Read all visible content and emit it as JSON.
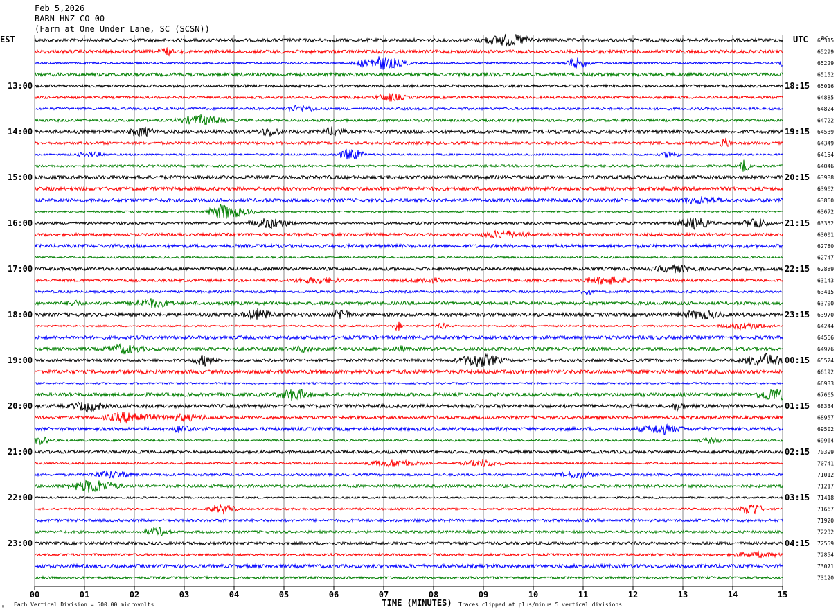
{
  "header": {
    "date": "Feb 5,2026",
    "station": "BARN HNZ CO 00",
    "location": "(Farm at One Under Lane, SC (SCSN))"
  },
  "axis": {
    "left_label": "EST",
    "right_label": "UTC",
    "dc_label": "DC",
    "xlabel": "TIME (MINUTES)",
    "x_ticks": [
      "00",
      "01",
      "02",
      "03",
      "04",
      "05",
      "06",
      "07",
      "08",
      "09",
      "10",
      "11",
      "12",
      "13",
      "14",
      "15"
    ],
    "footnote_left": "Each Vertical Division = 500.00 microvolts",
    "footnote_right": "Traces clipped at plus/minus 5 vertical divisions",
    "corner_mark": "ᴹ"
  },
  "chart_data": {
    "type": "line",
    "title": "",
    "xlabel": "TIME (MINUTES)",
    "xlim": [
      0,
      15
    ],
    "trace_colors": [
      "#000000",
      "#ff0000",
      "#0000ff",
      "#007f00"
    ],
    "est_hour_labels": [
      "13:00",
      "14:00",
      "15:00",
      "16:00",
      "17:00",
      "18:00",
      "19:00",
      "20:00",
      "21:00",
      "22:00",
      "23:00"
    ],
    "utc_hour_labels": [
      "18:15",
      "19:15",
      "20:15",
      "21:15",
      "22:15",
      "23:15",
      "00:15",
      "01:15",
      "02:15",
      "03:15",
      "04:15"
    ],
    "dc_offsets": [
      "65315",
      "65299",
      "65229",
      "65152",
      "65016",
      "64885",
      "64824",
      "64722",
      "64539",
      "64349",
      "64154",
      "64046",
      "63988",
      "63962",
      "63860",
      "63672",
      "63352",
      "63001",
      "62780",
      "62747",
      "62889",
      "63143",
      "63415",
      "63700",
      "63970",
      "64244",
      "64566",
      "64976",
      "65524",
      "66192",
      "66933",
      "67665",
      "68334",
      "68957",
      "69502",
      "69964",
      "70399",
      "70741",
      "71012",
      "71217",
      "71418",
      "71667",
      "71920",
      "72232",
      "72559",
      "72854",
      "73071",
      "73120"
    ]
  }
}
